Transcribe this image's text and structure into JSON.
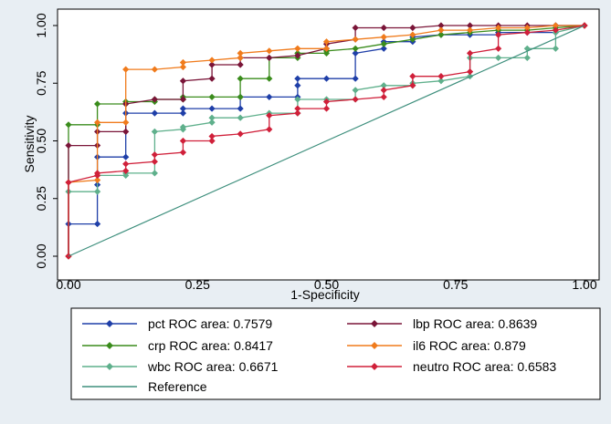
{
  "chart_data": {
    "type": "line",
    "title": "",
    "xlabel": "1-Specificity",
    "ylabel": "Sensitivity",
    "xlim": [
      0,
      1
    ],
    "ylim": [
      0,
      1
    ],
    "x_ticks": [
      "0.00",
      "0.25",
      "0.50",
      "0.75",
      "1.00"
    ],
    "y_ticks": [
      "0.00",
      "0.25",
      "0.50",
      "0.75",
      "1.00"
    ],
    "grid": false,
    "legend_position": "bottom",
    "series": [
      {
        "name": "pct ROC area: 0.7579",
        "color": "#1f3fa8",
        "points": [
          [
            0,
            0
          ],
          [
            0,
            0.14
          ],
          [
            0.056,
            0.14
          ],
          [
            0.056,
            0.31
          ],
          [
            0.056,
            0.43
          ],
          [
            0.111,
            0.43
          ],
          [
            0.111,
            0.62
          ],
          [
            0.167,
            0.62
          ],
          [
            0.222,
            0.62
          ],
          [
            0.222,
            0.64
          ],
          [
            0.278,
            0.64
          ],
          [
            0.333,
            0.64
          ],
          [
            0.333,
            0.69
          ],
          [
            0.389,
            0.69
          ],
          [
            0.444,
            0.69
          ],
          [
            0.444,
            0.74
          ],
          [
            0.444,
            0.77
          ],
          [
            0.5,
            0.77
          ],
          [
            0.556,
            0.77
          ],
          [
            0.556,
            0.88
          ],
          [
            0.611,
            0.9
          ],
          [
            0.611,
            0.93
          ],
          [
            0.667,
            0.93
          ],
          [
            0.667,
            0.95
          ],
          [
            0.722,
            0.96
          ],
          [
            0.778,
            0.96
          ],
          [
            0.833,
            0.96
          ],
          [
            0.833,
            0.97
          ],
          [
            0.889,
            0.97
          ],
          [
            0.944,
            0.97
          ],
          [
            0.944,
            1
          ],
          [
            1,
            1
          ]
        ]
      },
      {
        "name": "crp ROC area: 0.8417",
        "color": "#3a8c1c",
        "points": [
          [
            0,
            0
          ],
          [
            0,
            0.57
          ],
          [
            0.056,
            0.57
          ],
          [
            0.056,
            0.66
          ],
          [
            0.111,
            0.66
          ],
          [
            0.111,
            0.67
          ],
          [
            0.167,
            0.67
          ],
          [
            0.167,
            0.68
          ],
          [
            0.222,
            0.68
          ],
          [
            0.222,
            0.69
          ],
          [
            0.278,
            0.69
          ],
          [
            0.333,
            0.69
          ],
          [
            0.333,
            0.77
          ],
          [
            0.389,
            0.77
          ],
          [
            0.389,
            0.86
          ],
          [
            0.444,
            0.86
          ],
          [
            0.444,
            0.88
          ],
          [
            0.5,
            0.88
          ],
          [
            0.5,
            0.89
          ],
          [
            0.556,
            0.9
          ],
          [
            0.611,
            0.92
          ],
          [
            0.667,
            0.94
          ],
          [
            0.722,
            0.96
          ],
          [
            0.778,
            0.97
          ],
          [
            0.833,
            0.98
          ],
          [
            0.889,
            0.98
          ],
          [
            0.944,
            0.99
          ],
          [
            1,
            1
          ]
        ]
      },
      {
        "name": "wbc ROC area: 0.6671",
        "color": "#5fb08c",
        "points": [
          [
            0,
            0
          ],
          [
            0,
            0.28
          ],
          [
            0.056,
            0.28
          ],
          [
            0.056,
            0.35
          ],
          [
            0.111,
            0.35
          ],
          [
            0.111,
            0.36
          ],
          [
            0.167,
            0.36
          ],
          [
            0.167,
            0.54
          ],
          [
            0.222,
            0.55
          ],
          [
            0.222,
            0.56
          ],
          [
            0.278,
            0.58
          ],
          [
            0.278,
            0.6
          ],
          [
            0.333,
            0.6
          ],
          [
            0.389,
            0.62
          ],
          [
            0.444,
            0.62
          ],
          [
            0.444,
            0.68
          ],
          [
            0.5,
            0.68
          ],
          [
            0.556,
            0.68
          ],
          [
            0.556,
            0.72
          ],
          [
            0.611,
            0.74
          ],
          [
            0.667,
            0.74
          ],
          [
            0.667,
            0.75
          ],
          [
            0.722,
            0.76
          ],
          [
            0.778,
            0.78
          ],
          [
            0.778,
            0.86
          ],
          [
            0.833,
            0.86
          ],
          [
            0.889,
            0.86
          ],
          [
            0.889,
            0.9
          ],
          [
            0.944,
            0.9
          ],
          [
            0.944,
            0.97
          ],
          [
            1,
            1
          ]
        ]
      },
      {
        "name": "lbp ROC area: 0.8639",
        "color": "#7a1538",
        "points": [
          [
            0,
            0
          ],
          [
            0,
            0.48
          ],
          [
            0.056,
            0.48
          ],
          [
            0.056,
            0.54
          ],
          [
            0.111,
            0.54
          ],
          [
            0.111,
            0.66
          ],
          [
            0.167,
            0.68
          ],
          [
            0.222,
            0.68
          ],
          [
            0.222,
            0.76
          ],
          [
            0.278,
            0.77
          ],
          [
            0.278,
            0.83
          ],
          [
            0.333,
            0.83
          ],
          [
            0.333,
            0.86
          ],
          [
            0.389,
            0.86
          ],
          [
            0.444,
            0.87
          ],
          [
            0.5,
            0.9
          ],
          [
            0.5,
            0.92
          ],
          [
            0.556,
            0.94
          ],
          [
            0.556,
            0.99
          ],
          [
            0.611,
            0.99
          ],
          [
            0.667,
            0.99
          ],
          [
            0.722,
            1
          ],
          [
            0.778,
            1
          ],
          [
            0.833,
            1
          ],
          [
            0.889,
            1
          ],
          [
            0.944,
            1
          ],
          [
            1,
            1
          ]
        ]
      },
      {
        "name": "il6 ROC area: 0.879",
        "color": "#f07b1c",
        "points": [
          [
            0,
            0
          ],
          [
            0,
            0.32
          ],
          [
            0.056,
            0.33
          ],
          [
            0.056,
            0.58
          ],
          [
            0.111,
            0.58
          ],
          [
            0.111,
            0.81
          ],
          [
            0.167,
            0.81
          ],
          [
            0.222,
            0.82
          ],
          [
            0.222,
            0.84
          ],
          [
            0.278,
            0.85
          ],
          [
            0.333,
            0.86
          ],
          [
            0.333,
            0.88
          ],
          [
            0.389,
            0.89
          ],
          [
            0.444,
            0.9
          ],
          [
            0.444,
            0.9
          ],
          [
            0.5,
            0.9
          ],
          [
            0.5,
            0.93
          ],
          [
            0.556,
            0.94
          ],
          [
            0.611,
            0.95
          ],
          [
            0.667,
            0.96
          ],
          [
            0.722,
            0.98
          ],
          [
            0.778,
            0.98
          ],
          [
            0.833,
            0.99
          ],
          [
            0.889,
            0.99
          ],
          [
            0.944,
            1
          ],
          [
            1,
            1
          ]
        ]
      },
      {
        "name": "neutro ROC area: 0.6583",
        "color": "#d0203a",
        "points": [
          [
            0,
            0
          ],
          [
            0,
            0.32
          ],
          [
            0.056,
            0.35
          ],
          [
            0.056,
            0.36
          ],
          [
            0.111,
            0.37
          ],
          [
            0.111,
            0.4
          ],
          [
            0.167,
            0.41
          ],
          [
            0.167,
            0.44
          ],
          [
            0.222,
            0.45
          ],
          [
            0.222,
            0.5
          ],
          [
            0.278,
            0.5
          ],
          [
            0.278,
            0.52
          ],
          [
            0.333,
            0.53
          ],
          [
            0.389,
            0.55
          ],
          [
            0.389,
            0.61
          ],
          [
            0.444,
            0.62
          ],
          [
            0.444,
            0.64
          ],
          [
            0.5,
            0.64
          ],
          [
            0.5,
            0.67
          ],
          [
            0.556,
            0.68
          ],
          [
            0.611,
            0.69
          ],
          [
            0.611,
            0.72
          ],
          [
            0.667,
            0.74
          ],
          [
            0.667,
            0.78
          ],
          [
            0.722,
            0.78
          ],
          [
            0.778,
            0.8
          ],
          [
            0.778,
            0.88
          ],
          [
            0.833,
            0.9
          ],
          [
            0.833,
            0.96
          ],
          [
            0.889,
            0.97
          ],
          [
            0.944,
            0.98
          ],
          [
            1,
            1
          ]
        ]
      },
      {
        "name": "Reference",
        "color": "#3e8f7d",
        "reference": true,
        "points": [
          [
            0,
            0
          ],
          [
            1,
            1
          ]
        ]
      }
    ]
  }
}
